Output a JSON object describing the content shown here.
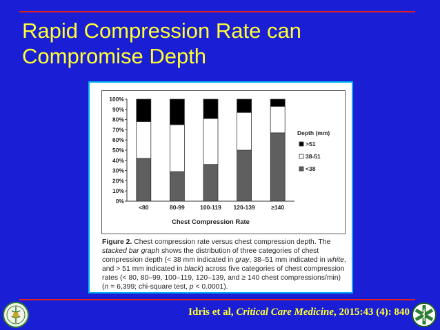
{
  "slide": {
    "title_line1": "Rapid Compression Rate can",
    "title_line2": "Compromise Depth"
  },
  "citation": {
    "authors": "Idris et al, ",
    "journal": "Critical Care Medicine",
    "details": ", 2015:43 (4): 840"
  },
  "caption": {
    "label": "Figure 2.",
    "part1": " Chest compression rate versus chest compression depth. The ",
    "em1": "stacked bar graph",
    "part2": " shows the distribution of three categories of chest compression depth (< 38 mm indicated in ",
    "em2": "gray",
    "part3": ", 38–51 mm indicated in ",
    "em3": "white",
    "part4": ", and > 51 mm indicated in ",
    "em4": "black",
    "part5": ") across five categories of chest compression rates (< 80, 80–99, 100–119, 120–139, and ≥ 140 chest compressions/min) (",
    "em5": "n",
    "part6": " = 6,399; chi-square test, ",
    "em6": "p",
    "part7": " < 0.0001)."
  },
  "chart_data": {
    "type": "bar",
    "stacked": true,
    "categories": [
      "<80",
      "80-99",
      "100-119",
      "120-139",
      "≥140"
    ],
    "series": [
      {
        "name": "<38",
        "color": "#5f5f5f",
        "values": [
          42,
          29,
          36,
          50,
          67
        ]
      },
      {
        "name": "38-51",
        "color": "#ffffff",
        "values": [
          36,
          46,
          45,
          37,
          26
        ]
      },
      {
        "name": ">51",
        "color": "#000000",
        "values": [
          22,
          25,
          19,
          13,
          7
        ]
      }
    ],
    "title": "",
    "xlabel": "Chest Compression Rate",
    "ylabel": "",
    "ylim": [
      0,
      100
    ],
    "yticks": [
      "0%",
      "10%",
      "20%",
      "30%",
      "40%",
      "50%",
      "60%",
      "70%",
      "80%",
      "90%",
      "100%"
    ],
    "legend_title": "Depth (mm)",
    "legend_order": [
      ">51",
      "38-51",
      "<38"
    ],
    "legend_position": "right"
  }
}
